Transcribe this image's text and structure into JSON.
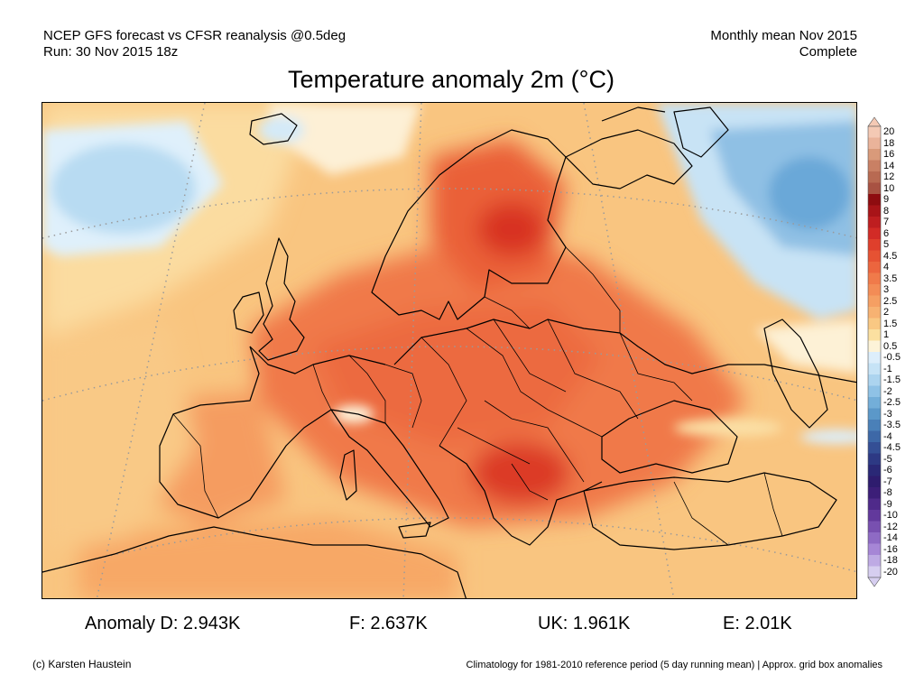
{
  "header": {
    "left_line1": "NCEP GFS forecast vs CFSR reanalysis @0.5deg",
    "left_line2": "Run: 30 Nov 2015 18z",
    "right_line1": "Monthly mean Nov 2015",
    "right_line2": "Complete"
  },
  "title": "Temperature anomaly 2m (°C)",
  "colorbar": {
    "labels": [
      "20",
      "18",
      "16",
      "14",
      "12",
      "10",
      "9",
      "8",
      "7",
      "6",
      "5",
      "4.5",
      "4",
      "3.5",
      "3",
      "2.5",
      "2",
      "1.5",
      "1",
      "0.5",
      "-0.5",
      "-1",
      "-1.5",
      "-2",
      "-2.5",
      "-3",
      "-3.5",
      "-4",
      "-4.5",
      "-5",
      "-6",
      "-7",
      "-8",
      "-9",
      "-10",
      "-12",
      "-14",
      "-16",
      "-18",
      "-20"
    ],
    "colors": [
      "#f4c9b4",
      "#eab39a",
      "#d99a7a",
      "#c98064",
      "#b86a52",
      "#a85242",
      "#8e0c10",
      "#a81418",
      "#be1e20",
      "#d22b26",
      "#df3f2c",
      "#e65233",
      "#ec653e",
      "#f07a4a",
      "#f38c56",
      "#f59f63",
      "#f7b272",
      "#f9c883",
      "#fbe0a0",
      "#fdf3d8",
      "#ddeefb",
      "#c6e3f6",
      "#acd4ef",
      "#8fc2e6",
      "#73aed9",
      "#5b98c9",
      "#4a80b8",
      "#3d68a7",
      "#344f95",
      "#2d3984",
      "#2a2876",
      "#2e1c6e",
      "#3c1e78",
      "#4f2a8a",
      "#62399c",
      "#7850b0",
      "#8e6ac4",
      "#a686d6",
      "#beaae4",
      "#d6cef0"
    ]
  },
  "stats": {
    "d": "Anomaly D: 2.943K",
    "f": "F: 2.637K",
    "uk": "UK: 1.961K",
    "e": "E: 2.01K"
  },
  "footer": {
    "left": "(c) Karsten Haustein",
    "right": "Climatology for 1981-2010 reference period (5 day running mean) | Approx. grid box anomalies"
  }
}
